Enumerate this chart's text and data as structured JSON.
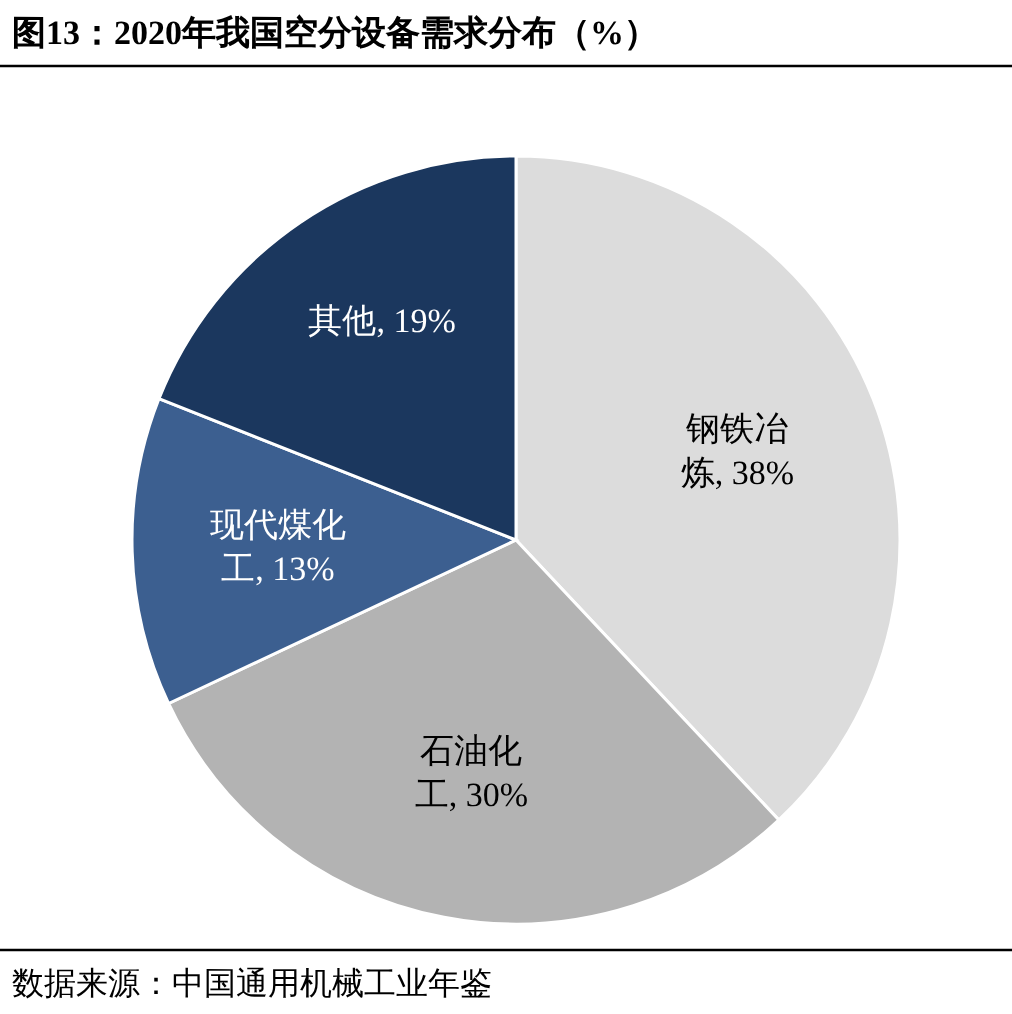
{
  "chart_data": {
    "type": "pie",
    "title": "图13：2020年我国空分设备需求分布（%）",
    "categories": [
      "钢铁冶炼",
      "石油化工",
      "现代煤化工",
      "其他"
    ],
    "values": [
      38,
      30,
      13,
      19
    ],
    "value_labels": [
      "38%",
      "30%",
      "13%",
      "19%"
    ],
    "colors": [
      "#dcdcdc",
      "#b3b3b3",
      "#3c5f90",
      "#1b375e"
    ],
    "annotations": [
      "数据来源：中国通用机械工业年鉴"
    ]
  }
}
